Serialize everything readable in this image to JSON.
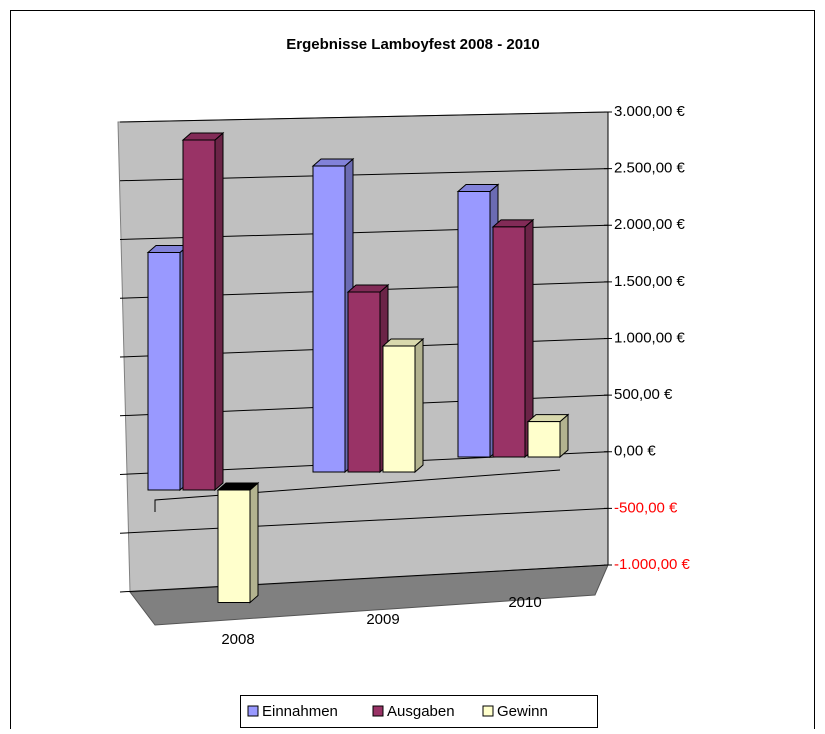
{
  "chart_data": {
    "type": "bar3d",
    "title": "Ergebnisse Lamboyfest 2008 - 2010",
    "categories": [
      "2008",
      "2009",
      "2010"
    ],
    "series": [
      {
        "name": "Einnahmen",
        "color": "#9999ff",
        "values": [
          1900,
          2550,
          2250
        ]
      },
      {
        "name": "Ausgaben",
        "color": "#993366",
        "values": [
          2800,
          1500,
          1950
        ]
      },
      {
        "name": "Gewinn",
        "color": "#ffffcc",
        "values": [
          -900,
          1050,
          300
        ]
      }
    ],
    "ylim": [
      -1000,
      3000
    ],
    "yticks": [
      {
        "value": 3000,
        "label": "3.000,00 €"
      },
      {
        "value": 2500,
        "label": "2.500,00 €"
      },
      {
        "value": 2000,
        "label": "2.000,00 €"
      },
      {
        "value": 1500,
        "label": "1.500,00 €"
      },
      {
        "value": 1000,
        "label": "1.000,00 €"
      },
      {
        "value": 500,
        "label": "500,00 €"
      },
      {
        "value": 0,
        "label": "0,00 €"
      },
      {
        "value": -500,
        "label": "-500,00 €"
      },
      {
        "value": -1000,
        "label": "-1.000,00 €"
      }
    ],
    "negative_label_color": "#ff0000",
    "grid": true,
    "legend": "bottom"
  }
}
